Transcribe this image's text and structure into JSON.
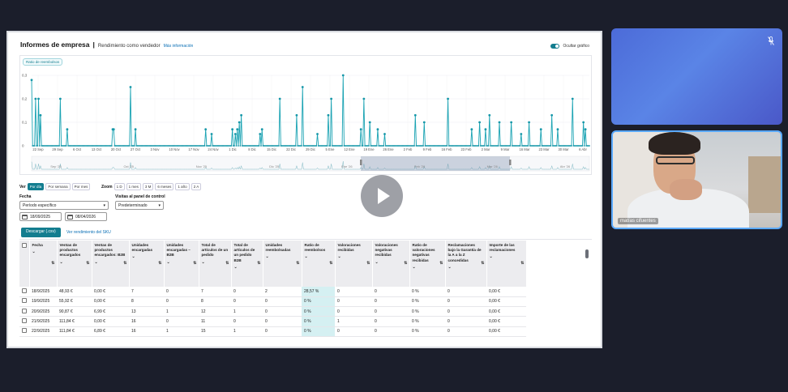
{
  "header": {
    "title": "Informes de empresa",
    "separator": "|",
    "subtitle": "Rendimiento como vendedor",
    "more_info": "Más información"
  },
  "toggle_label": "Ocultar gráfico",
  "chart": {
    "chip": "Ratio de reembolsos",
    "yticks": [
      "0,3",
      "0,2",
      "0,1",
      "0"
    ],
    "xticks": [
      "22 Sep",
      "29 Sep",
      "6 Oct",
      "13 Oct",
      "20 Oct",
      "27 Oct",
      "3 Nov",
      "10 Nov",
      "17 Nov",
      "24 Nov",
      "1 Dic",
      "8 Dic",
      "15 Dic",
      "22 Dic",
      "29 Dic",
      "5 Ene",
      "12 Ene",
      "19 Ene",
      "26 Ene",
      "2 Feb",
      "9 Feb",
      "16 Feb",
      "23 Feb",
      "2 Mar",
      "9 Mar",
      "16 Mar",
      "23 Mar",
      "30 Mar",
      "6 Abr"
    ],
    "nav_labels": [
      "Sep '25",
      "Oct '25",
      "Nov '25",
      "Dic '25",
      "Ene '26",
      "Feb '26",
      "Mar '26",
      "Abr '26"
    ]
  },
  "chart_data": {
    "type": "line",
    "series": [
      {
        "values": [
          0.28,
          0,
          0,
          0,
          0.2,
          0,
          0,
          0.2,
          0,
          0.13,
          0,
          0,
          0,
          0,
          0,
          0,
          0,
          0,
          0,
          0,
          0,
          0,
          0,
          0,
          0,
          0,
          0,
          0,
          0,
          0.2,
          0,
          0,
          0,
          0,
          0,
          0,
          0.07,
          0,
          0,
          0,
          0,
          0,
          0,
          0,
          0,
          0,
          0,
          0,
          0,
          0,
          0,
          0,
          0,
          0,
          0,
          0,
          0,
          0,
          0,
          0,
          0,
          0,
          0,
          0,
          0,
          0,
          0,
          0,
          0,
          0,
          0,
          0,
          0,
          0,
          0,
          0,
          0,
          0,
          0,
          0,
          0,
          0,
          0.07,
          0.07,
          0,
          0,
          0,
          0,
          0,
          0,
          0,
          0,
          0,
          0,
          0,
          0,
          0,
          0,
          0,
          0,
          0.25,
          0,
          0,
          0,
          0,
          0.07,
          0,
          0,
          0,
          0,
          0,
          0,
          0,
          0,
          0,
          0,
          0,
          0,
          0,
          0,
          0,
          0,
          0,
          0,
          0,
          0,
          0,
          0,
          0,
          0,
          0,
          0,
          0,
          0,
          0,
          0,
          0,
          0,
          0,
          0,
          0,
          0,
          0,
          0,
          0,
          0,
          0,
          0,
          0,
          0,
          0,
          0,
          0,
          0,
          0,
          0,
          0,
          0,
          0,
          0,
          0,
          0,
          0,
          0,
          0,
          0,
          0,
          0,
          0,
          0,
          0,
          0,
          0,
          0,
          0,
          0,
          0.07,
          0,
          0,
          0,
          0,
          0,
          0.05,
          0,
          0,
          0,
          0,
          0,
          0,
          0,
          0,
          0,
          0,
          0,
          0,
          0,
          0,
          0,
          0,
          0,
          0,
          0,
          0,
          0.07,
          0,
          0,
          0.05,
          0,
          0.07,
          0,
          0.1,
          0,
          0.13,
          0,
          0,
          0,
          0,
          0,
          0,
          0,
          0,
          0,
          0,
          0,
          0,
          0,
          0,
          0,
          0,
          0,
          0,
          0.05,
          0,
          0.07,
          0,
          0,
          0,
          0,
          0,
          0,
          0,
          0,
          0,
          0,
          0,
          0,
          0,
          0,
          0,
          0,
          0,
          0.2,
          0,
          0,
          0,
          0,
          0,
          0,
          0,
          0,
          0,
          0,
          0,
          0,
          0,
          0,
          0,
          0,
          0.13,
          0,
          0,
          0,
          0,
          0,
          0.25,
          0,
          0,
          0,
          0,
          0,
          0,
          0,
          0,
          0,
          0,
          0,
          0,
          0,
          0,
          0.05,
          0,
          0,
          0,
          0,
          0,
          0,
          0,
          0,
          0,
          0,
          0.13,
          0,
          0,
          0.2,
          0,
          0,
          0,
          0,
          0,
          0,
          0,
          0,
          0,
          0,
          0,
          0.3,
          0,
          0,
          0,
          0,
          0,
          0,
          0,
          0,
          0,
          0,
          0,
          0,
          0,
          0,
          0,
          0,
          0,
          0.07,
          0,
          0,
          0.2,
          0,
          0,
          0,
          0,
          0,
          0.1,
          0,
          0,
          0,
          0,
          0,
          0,
          0,
          0.07,
          0,
          0,
          0,
          0,
          0,
          0,
          0.05,
          0,
          0,
          0,
          0,
          0,
          0,
          0,
          0,
          0,
          0,
          0,
          0,
          0,
          0,
          0,
          0,
          0,
          0,
          0,
          0,
          0,
          0,
          0,
          0,
          0,
          0,
          0,
          0,
          0,
          0,
          0.13,
          0,
          0,
          0,
          0,
          0,
          0,
          0,
          0,
          0.1,
          0,
          0,
          0,
          0,
          0,
          0,
          0,
          0,
          0,
          0,
          0,
          0,
          0,
          0,
          0,
          0,
          0,
          0,
          0,
          0,
          0,
          0,
          0,
          0.2,
          0,
          0,
          0,
          0,
          0,
          0,
          0,
          0,
          0,
          0,
          0,
          0,
          0,
          0,
          0,
          0,
          0,
          0,
          0,
          0,
          0,
          0,
          0,
          0.07,
          0,
          0,
          0,
          0,
          0,
          0,
          0,
          0.1,
          0,
          0,
          0,
          0,
          0,
          0.07,
          0,
          0,
          0,
          0.13,
          0,
          0,
          0,
          0,
          0,
          0,
          0,
          0,
          0,
          0.1,
          0,
          0,
          0,
          0,
          0,
          0,
          0,
          0,
          0,
          0,
          0,
          0.1,
          0,
          0,
          0,
          0,
          0,
          0,
          0,
          0,
          0,
          0.05,
          0,
          0,
          0,
          0,
          0,
          0,
          0,
          0.1,
          0,
          0,
          0,
          0,
          0,
          0,
          0,
          0,
          0,
          0,
          0,
          0.07,
          0,
          0,
          0,
          0,
          0,
          0,
          0,
          0,
          0,
          0,
          0.13,
          0,
          0,
          0,
          0,
          0,
          0.07,
          0,
          0,
          0,
          0,
          0,
          0,
          0,
          0,
          0,
          0,
          0,
          0,
          0,
          0,
          0.2,
          0,
          0,
          0,
          0,
          0,
          0,
          0,
          0,
          0,
          0,
          0.1,
          0,
          0.07,
          0,
          0,
          0,
          0
        ]
      }
    ],
    "ylim": [
      0,
      0.3
    ]
  },
  "controls": {
    "ver_label": "Ver",
    "ver_options": [
      "Por día",
      "Por semana",
      "Por mes"
    ],
    "zoom_label": "Zoom",
    "zoom_options": [
      "1 D",
      "1 mes",
      "3 M",
      "6 meses",
      "1 año",
      "2 A"
    ]
  },
  "filters": {
    "fecha_label": "Fecha",
    "periodo": "Período específico",
    "date_from": "18/09/2025",
    "date_to": "08/04/2026",
    "visitas_label": "Visitas al panel de control",
    "visitas_value": "Predeterminado"
  },
  "actions": {
    "download": "Descargar (.csv)",
    "sku_link": "Ver rendimiento del SKU"
  },
  "table": {
    "headers": [
      "Fecha",
      "Ventas de productos encargados",
      "Ventas de productos encargados: B2B",
      "Unidades encargadas",
      "Unidades encargadas – B2B",
      "Total de artículos de un pedido",
      "Total de artículos de un pedido B2B",
      "Unidades reembolsadas",
      "Ratio de reembolsos",
      "Valoraciones recibidas",
      "Valoraciones negativas recibidas",
      "Ratio de valoraciones negativas recibidas",
      "Reclamaciones bajo la Garantía de la A a la Z concedidas",
      "Importe de las reclamaciones"
    ],
    "rows": [
      [
        "18/9/2025",
        "48,93 €",
        "0,00 €",
        "7",
        "0",
        "7",
        "0",
        "2",
        "28,57 %",
        "0",
        "0",
        "0 %",
        "0",
        "0,00 €"
      ],
      [
        "19/9/2025",
        "55,92 €",
        "0,00 €",
        "8",
        "0",
        "8",
        "0",
        "0",
        "0 %",
        "0",
        "0",
        "0 %",
        "0",
        "0,00 €"
      ],
      [
        "20/9/2025",
        "90,87 €",
        "6,99 €",
        "13",
        "1",
        "12",
        "1",
        "0",
        "0 %",
        "0",
        "0",
        "0 %",
        "0",
        "0,00 €"
      ],
      [
        "21/9/2025",
        "111,84 €",
        "0,00 €",
        "16",
        "0",
        "11",
        "0",
        "0",
        "0 %",
        "1",
        "0",
        "0 %",
        "0",
        "0,00 €"
      ],
      [
        "22/9/2025",
        "111,84 €",
        "6,89 €",
        "16",
        "1",
        "15",
        "1",
        "0",
        "0 %",
        "0",
        "0",
        "0 %",
        "0",
        "0,00 €"
      ]
    ]
  },
  "participant": {
    "name": "matías cifuentes"
  }
}
